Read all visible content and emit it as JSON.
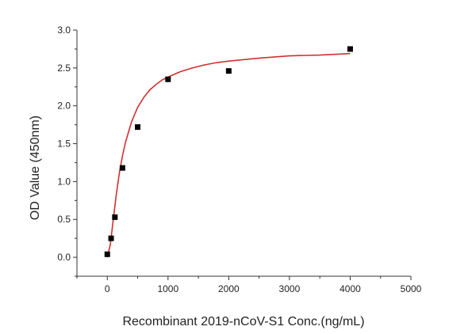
{
  "chart_data": {
    "type": "scatter",
    "title": "",
    "xlabel": "Recombinant 2019-nCoV-S1  Conc.(ng/mL)",
    "ylabel": "OD Value (450nm)",
    "xlim": [
      -500,
      5000
    ],
    "ylim": [
      -0.25,
      3.0
    ],
    "x_ticks": [
      0,
      1000,
      2000,
      3000,
      4000,
      5000
    ],
    "y_ticks": [
      0.0,
      0.5,
      1.0,
      1.5,
      2.0,
      2.5,
      3.0
    ],
    "x_tick_labels": [
      "0",
      "1000",
      "2000",
      "3000",
      "4000",
      "5000"
    ],
    "y_tick_labels": [
      "0.0",
      "0.5",
      "1.0",
      "1.5",
      "2.0",
      "2.5",
      "3.0"
    ],
    "grid": false,
    "legend": "none",
    "series": [
      {
        "kind": "points",
        "marker": "square",
        "color": "#000000",
        "x": [
          0,
          62.5,
          125,
          250,
          500,
          1000,
          2000,
          4000
        ],
        "y": [
          0.04,
          0.25,
          0.53,
          1.18,
          1.72,
          2.35,
          2.46,
          2.75
        ]
      },
      {
        "kind": "fit-curve",
        "color": "#d32f2f",
        "x": [
          0,
          50,
          100,
          150,
          200,
          250,
          300,
          400,
          500,
          600,
          700,
          800,
          900,
          1000,
          1200,
          1400,
          1600,
          1800,
          2000,
          2500,
          3000,
          3500,
          4000
        ],
        "y": [
          0.0,
          0.17,
          0.51,
          0.84,
          1.12,
          1.34,
          1.52,
          1.79,
          1.98,
          2.11,
          2.21,
          2.28,
          2.34,
          2.38,
          2.45,
          2.5,
          2.54,
          2.57,
          2.59,
          2.63,
          2.66,
          2.67,
          2.69
        ]
      }
    ]
  }
}
